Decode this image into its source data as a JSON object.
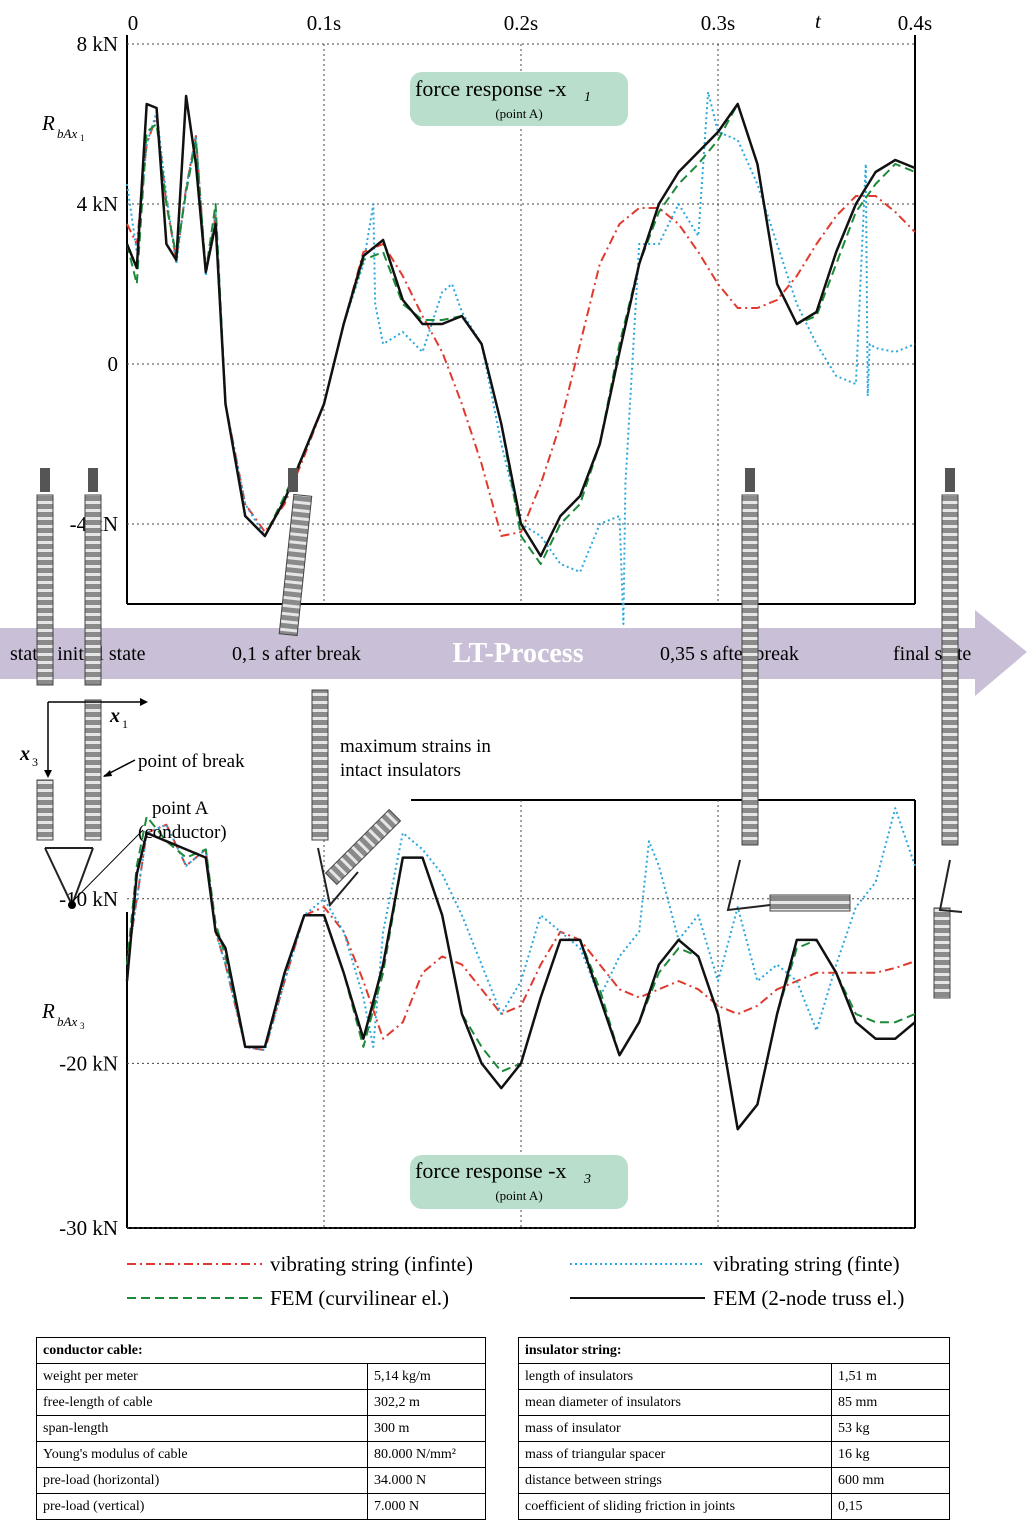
{
  "chart_data": [
    {
      "type": "line",
      "panel": "top",
      "x_ticks": [
        "0",
        "0.1s",
        "0.2s",
        "0.3s",
        "0.4s"
      ],
      "x_axis_symbol": "t",
      "y_ticks": [
        "8 kN",
        "4 kN",
        "0",
        "-4 kN"
      ],
      "ylabel": "R_bAx1",
      "xlim": [
        0,
        0.4
      ],
      "ylim": [
        -6,
        8
      ],
      "grid": true,
      "panel_title": "force response -x",
      "panel_title_sub": "1",
      "panel_subtitle": "(point A)",
      "series": [
        {
          "name": "vibrating string (infinte)",
          "color": "#e03a2e",
          "style": "dashdot",
          "x": [
            0,
            0.005,
            0.01,
            0.015,
            0.02,
            0.025,
            0.03,
            0.035,
            0.04,
            0.045,
            0.05,
            0.06,
            0.07,
            0.08,
            0.09,
            0.1,
            0.11,
            0.12,
            0.13,
            0.14,
            0.15,
            0.16,
            0.17,
            0.18,
            0.19,
            0.2,
            0.21,
            0.22,
            0.23,
            0.24,
            0.25,
            0.26,
            0.27,
            0.28,
            0.29,
            0.3,
            0.31,
            0.32,
            0.33,
            0.34,
            0.35,
            0.36,
            0.37,
            0.38,
            0.39,
            0.4
          ],
          "y": [
            3.5,
            3.0,
            5.5,
            6.2,
            4.0,
            2.6,
            4.4,
            5.7,
            2.3,
            3.7,
            -1.0,
            -3.5,
            -4.2,
            -3.5,
            -2.3,
            -1.0,
            1.0,
            2.8,
            3.0,
            2.2,
            1.2,
            0.3,
            -1.0,
            -2.5,
            -4.3,
            -4.2,
            -3.0,
            -1.5,
            0.5,
            2.5,
            3.5,
            3.9,
            3.9,
            3.5,
            2.8,
            2.0,
            1.4,
            1.4,
            1.6,
            2.2,
            3.0,
            3.7,
            4.2,
            4.2,
            3.8,
            3.3
          ]
        },
        {
          "name": "vibrating string (finte)",
          "color": "#2aa7dd",
          "style": "dotted",
          "x": [
            0,
            0.005,
            0.01,
            0.015,
            0.02,
            0.025,
            0.03,
            0.035,
            0.04,
            0.045,
            0.05,
            0.06,
            0.07,
            0.08,
            0.09,
            0.1,
            0.11,
            0.12,
            0.125,
            0.126,
            0.13,
            0.14,
            0.15,
            0.16,
            0.165,
            0.17,
            0.18,
            0.19,
            0.2,
            0.21,
            0.22,
            0.23,
            0.24,
            0.25,
            0.252,
            0.253,
            0.26,
            0.27,
            0.28,
            0.29,
            0.295,
            0.3,
            0.31,
            0.32,
            0.33,
            0.34,
            0.35,
            0.36,
            0.37,
            0.375,
            0.376,
            0.377,
            0.38,
            0.39,
            0.4
          ],
          "y": [
            4.5,
            2.8,
            5.5,
            6.3,
            4.2,
            2.5,
            4.4,
            5.7,
            2.2,
            3.8,
            -1.0,
            -3.5,
            -4.3,
            -3.4,
            -2.2,
            -1.0,
            1.0,
            2.5,
            4.0,
            1.5,
            0.5,
            0.8,
            0.3,
            1.8,
            2.0,
            1.3,
            0.5,
            -2.0,
            -4.0,
            -4.3,
            -5.0,
            -5.2,
            -4.0,
            -3.8,
            -6.5,
            -3.0,
            3.0,
            3.0,
            4.0,
            3.2,
            6.8,
            5.8,
            5.6,
            4.5,
            3.0,
            1.5,
            0.5,
            -0.3,
            -0.5,
            5.0,
            -0.8,
            0.5,
            0.4,
            0.3,
            0.5
          ]
        },
        {
          "name": "FEM (curvilinear el.)",
          "color": "#1d8a3a",
          "style": "dashed",
          "x": [
            0,
            0.005,
            0.01,
            0.015,
            0.02,
            0.025,
            0.03,
            0.035,
            0.04,
            0.045,
            0.05,
            0.06,
            0.07,
            0.08,
            0.09,
            0.1,
            0.11,
            0.12,
            0.13,
            0.14,
            0.15,
            0.16,
            0.17,
            0.18,
            0.19,
            0.2,
            0.21,
            0.22,
            0.23,
            0.24,
            0.25,
            0.26,
            0.27,
            0.28,
            0.29,
            0.3,
            0.31,
            0.32,
            0.33,
            0.34,
            0.35,
            0.36,
            0.37,
            0.38,
            0.39,
            0.4
          ],
          "y": [
            3.0,
            2.0,
            5.8,
            6.0,
            4.0,
            2.7,
            4.3,
            5.6,
            2.3,
            4.0,
            -1.0,
            -3.8,
            -4.3,
            -3.3,
            -2.2,
            -1.0,
            1.0,
            2.6,
            2.8,
            1.5,
            1.1,
            1.1,
            1.2,
            0.5,
            -1.5,
            -4.3,
            -5.0,
            -4.0,
            -3.5,
            -2.0,
            0.5,
            2.5,
            3.8,
            4.5,
            5.0,
            5.6,
            6.5,
            5.0,
            2.0,
            1.0,
            1.2,
            2.5,
            3.8,
            4.5,
            5.0,
            4.8
          ]
        },
        {
          "name": "FEM (2-node truss el.)",
          "color": "#111111",
          "style": "solid",
          "x": [
            0,
            0.005,
            0.01,
            0.015,
            0.02,
            0.025,
            0.03,
            0.035,
            0.04,
            0.045,
            0.05,
            0.06,
            0.07,
            0.08,
            0.09,
            0.1,
            0.11,
            0.12,
            0.13,
            0.14,
            0.15,
            0.16,
            0.17,
            0.18,
            0.19,
            0.2,
            0.21,
            0.22,
            0.23,
            0.24,
            0.25,
            0.26,
            0.27,
            0.28,
            0.29,
            0.3,
            0.31,
            0.32,
            0.33,
            0.34,
            0.35,
            0.36,
            0.37,
            0.38,
            0.39,
            0.4
          ],
          "y": [
            3.0,
            2.4,
            6.5,
            6.4,
            3.0,
            2.6,
            6.7,
            5.0,
            2.3,
            3.5,
            -1.0,
            -3.8,
            -4.3,
            -3.4,
            -2.2,
            -1.0,
            1.0,
            2.7,
            3.1,
            1.6,
            1.0,
            1.0,
            1.2,
            0.5,
            -1.5,
            -4.0,
            -4.8,
            -3.8,
            -3.3,
            -2.0,
            0.3,
            2.5,
            4.0,
            4.8,
            5.3,
            5.8,
            6.5,
            5.0,
            2.0,
            1.0,
            1.3,
            2.8,
            4.0,
            4.8,
            5.1,
            4.9
          ]
        }
      ]
    },
    {
      "type": "line",
      "panel": "bottom",
      "y_ticks": [
        "-10 kN",
        "-20 kN",
        "-30 kN"
      ],
      "ylabel": "R_bAx3",
      "xlim": [
        0,
        0.4
      ],
      "ylim": [
        -30,
        -4
      ],
      "grid": true,
      "panel_title": "force response -x",
      "panel_title_sub": "3",
      "panel_subtitle": "(point A)",
      "series": [
        {
          "name": "vibrating string (infinte)",
          "color": "#e03a2e",
          "style": "dashdot",
          "x": [
            0,
            0.01,
            0.02,
            0.03,
            0.04,
            0.045,
            0.05,
            0.06,
            0.07,
            0.08,
            0.09,
            0.1,
            0.11,
            0.12,
            0.13,
            0.14,
            0.15,
            0.16,
            0.17,
            0.18,
            0.19,
            0.2,
            0.21,
            0.22,
            0.23,
            0.24,
            0.25,
            0.26,
            0.27,
            0.28,
            0.29,
            0.3,
            0.31,
            0.32,
            0.33,
            0.34,
            0.35,
            0.36,
            0.37,
            0.38,
            0.39,
            0.4
          ],
          "y": [
            -14,
            -6,
            -5.5,
            -8,
            -7,
            -12,
            -14,
            -19,
            -19.2,
            -15,
            -11,
            -10.5,
            -12,
            -15,
            -18.5,
            -17.5,
            -14.5,
            -13.5,
            -14,
            -15.5,
            -17,
            -16.5,
            -14,
            -12,
            -12.5,
            -14,
            -15.5,
            -16,
            -15.5,
            -15,
            -15.5,
            -16.5,
            -17,
            -16.5,
            -15.5,
            -15,
            -14.5,
            -14.5,
            -14.5,
            -14.5,
            -14.2,
            -13.8
          ]
        },
        {
          "name": "vibrating string (finte)",
          "color": "#2aa7dd",
          "style": "dotted",
          "x": [
            0,
            0.01,
            0.02,
            0.03,
            0.04,
            0.045,
            0.05,
            0.06,
            0.07,
            0.08,
            0.09,
            0.1,
            0.11,
            0.12,
            0.125,
            0.13,
            0.14,
            0.15,
            0.16,
            0.17,
            0.18,
            0.19,
            0.2,
            0.21,
            0.22,
            0.23,
            0.24,
            0.25,
            0.26,
            0.265,
            0.27,
            0.28,
            0.29,
            0.3,
            0.31,
            0.32,
            0.33,
            0.34,
            0.35,
            0.36,
            0.37,
            0.38,
            0.39,
            0.4
          ],
          "y": [
            -14,
            -6,
            -5.5,
            -8,
            -7,
            -12,
            -14,
            -19,
            -19.2,
            -15,
            -11,
            -10,
            -12,
            -16,
            -19,
            -12,
            -6,
            -7,
            -8.5,
            -11,
            -14,
            -17,
            -15,
            -11,
            -12,
            -13,
            -16,
            -13.5,
            -12,
            -6.5,
            -8,
            -12.5,
            -11,
            -15,
            -10.5,
            -15,
            -14,
            -15,
            -18,
            -14,
            -10.5,
            -9,
            -4.5,
            -8
          ]
        },
        {
          "name": "FEM (curvilinear el.)",
          "color": "#1d8a3a",
          "style": "dashed",
          "x": [
            0,
            0.005,
            0.01,
            0.02,
            0.03,
            0.04,
            0.045,
            0.05,
            0.06,
            0.07,
            0.08,
            0.09,
            0.1,
            0.11,
            0.12,
            0.13,
            0.14,
            0.15,
            0.16,
            0.17,
            0.18,
            0.19,
            0.2,
            0.21,
            0.22,
            0.23,
            0.24,
            0.25,
            0.26,
            0.27,
            0.28,
            0.29,
            0.3,
            0.31,
            0.32,
            0.33,
            0.34,
            0.35,
            0.36,
            0.37,
            0.38,
            0.39,
            0.4
          ],
          "y": [
            -14,
            -8,
            -5,
            -6.5,
            -7.5,
            -7,
            -11.5,
            -13.5,
            -19,
            -19,
            -14.5,
            -11,
            -11,
            -14.5,
            -19,
            -14.5,
            -7.5,
            -7.5,
            -11,
            -17,
            -19,
            -20.5,
            -20,
            -16,
            -12.5,
            -12.5,
            -15.5,
            -19.5,
            -17.5,
            -14.5,
            -13,
            -13.5,
            -17,
            -24,
            -22.5,
            -17,
            -13,
            -12.5,
            -14.5,
            -17,
            -17.5,
            -17.5,
            -17
          ]
        },
        {
          "name": "FEM (2-node truss el.)",
          "color": "#111111",
          "style": "solid",
          "x": [
            0,
            0.005,
            0.01,
            0.02,
            0.03,
            0.04,
            0.045,
            0.05,
            0.06,
            0.07,
            0.08,
            0.09,
            0.1,
            0.11,
            0.12,
            0.13,
            0.14,
            0.15,
            0.16,
            0.17,
            0.18,
            0.19,
            0.2,
            0.21,
            0.22,
            0.23,
            0.24,
            0.25,
            0.26,
            0.27,
            0.28,
            0.29,
            0.3,
            0.31,
            0.32,
            0.33,
            0.34,
            0.35,
            0.36,
            0.37,
            0.38,
            0.39,
            0.4
          ],
          "y": [
            -15,
            -8.5,
            -6,
            -6.5,
            -7,
            -7.5,
            -12,
            -13,
            -19,
            -19,
            -14.5,
            -11,
            -11,
            -14.5,
            -18.5,
            -14,
            -7.5,
            -7.5,
            -11,
            -17,
            -20,
            -21.5,
            -20,
            -16,
            -12.5,
            -12.5,
            -16,
            -19.5,
            -17.5,
            -14,
            -12.5,
            -13.5,
            -17,
            -24,
            -22.5,
            -17,
            -12.5,
            -12.5,
            -14.5,
            -17.5,
            -18.5,
            -18.5,
            -17.5
          ]
        }
      ]
    }
  ],
  "banner": {
    "center": "LT-Process",
    "left": "static initial state",
    "mid_left": "0,1 s after break",
    "mid_right": "0,35 s after break",
    "right": "final state"
  },
  "annotations": {
    "x1": "x",
    "x1_sub": "1",
    "x3": "x",
    "x3_sub": "3",
    "point_of_break": "point of break",
    "point_a_1": "point A",
    "point_a_2": "(conductor)",
    "max_strain_1": "maximum strains in",
    "max_strain_2": "intact insulators"
  },
  "legend": [
    {
      "label": "vibrating string (infinte)",
      "color": "#e03a2e",
      "style": "dashdot"
    },
    {
      "label": "vibrating string (finte)",
      "color": "#2aa7dd",
      "style": "dotted"
    },
    {
      "label": "FEM (curvilinear el.)",
      "color": "#1d8a3a",
      "style": "dashed"
    },
    {
      "label": "FEM (2-node truss el.)",
      "color": "#111111",
      "style": "solid"
    }
  ],
  "tables": {
    "conductor": {
      "title": "conductor cable:",
      "rows": [
        [
          "weight per meter",
          "5,14 kg/m"
        ],
        [
          "free-length of cable",
          "302,2 m"
        ],
        [
          "span-length",
          "300 m"
        ],
        [
          "Young's modulus of cable",
          "80.000 N/mm²"
        ],
        [
          "pre-load (horizontal)",
          "34.000 N"
        ],
        [
          "pre-load (vertical)",
          "7.000 N"
        ]
      ]
    },
    "insulator": {
      "title": "insulator string:",
      "rows": [
        [
          "length of insulators",
          "1,51 m"
        ],
        [
          "mean diameter of insulators",
          "85 mm"
        ],
        [
          "mass of insulator",
          "53 kg"
        ],
        [
          "mass of triangular spacer",
          "16 kg"
        ],
        [
          "distance between strings",
          "600 mm"
        ],
        [
          "coefficient of sliding friction in joints",
          "0,15"
        ]
      ]
    }
  },
  "colors": {
    "banner": "#c9bfd6",
    "title_box": "#b9dfcc",
    "insulator": "#7a7a7a"
  }
}
